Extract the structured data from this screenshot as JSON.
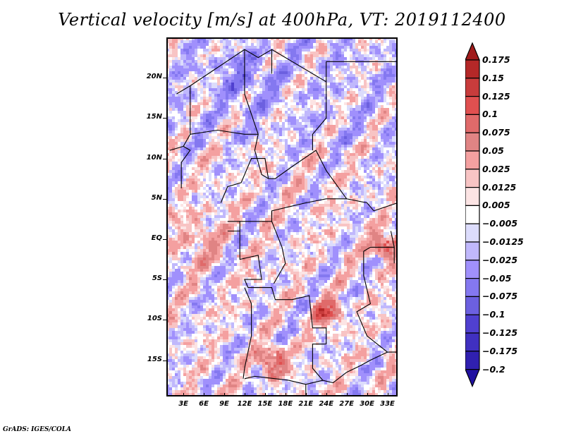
{
  "title": "Vertical velocity [m/s] at 400hPa, VT: 2019112400",
  "credit": "GrADS: IGES/COLA",
  "chart_data": {
    "type": "heatmap",
    "title": "Vertical velocity [m/s] at 400hPa, VT: 2019112400",
    "variable": "Vertical velocity",
    "units": "m/s",
    "level": "400hPa",
    "valid_time": "2019112400",
    "xlabel": "",
    "ylabel": "",
    "x_ticks": [
      "3E",
      "6E",
      "9E",
      "12E",
      "15E",
      "18E",
      "21E",
      "24E",
      "27E",
      "30E",
      "33E"
    ],
    "x_tick_values": [
      3,
      6,
      9,
      12,
      15,
      18,
      21,
      24,
      27,
      30,
      33
    ],
    "y_ticks": [
      "20N",
      "15N",
      "10N",
      "5N",
      "EQ",
      "5S",
      "10S",
      "15S"
    ],
    "y_tick_values": [
      20,
      15,
      10,
      5,
      0,
      -5,
      -10,
      -15
    ],
    "xlim": [
      0.5,
      34.5
    ],
    "ylim": [
      -19.5,
      25
    ],
    "colorbar": {
      "orientation": "vertical",
      "placement": "right",
      "extend": "both",
      "levels": [
        "0.175",
        "0.15",
        "0.125",
        "0.1",
        "0.075",
        "0.05",
        "0.025",
        "0.0125",
        "0.005",
        "-0.005",
        "-0.0125",
        "-0.025",
        "-0.05",
        "-0.075",
        "-0.1",
        "-0.125",
        "-0.175",
        "-0.2"
      ],
      "colors": [
        "#a01c1c",
        "#b42828",
        "#c83c3c",
        "#e05050",
        "#e06a6a",
        "#e08484",
        "#f4a0a0",
        "#f8c4c4",
        "#fce4e4",
        "#ffffff",
        "#dcdcfc",
        "#c0b8fc",
        "#a090fc",
        "#8478f0",
        "#6c60e0",
        "#5040d0",
        "#4030c0",
        "#3020b0",
        "#2010a0"
      ]
    },
    "features": [
      {
        "name": "positive anomaly",
        "region": "Lake Victoria / East Africa",
        "approx_lon": 32.5,
        "approx_lat": -0.5,
        "value_class": "0.15+"
      },
      {
        "name": "positive band",
        "region": "Southern DRC / Zambia",
        "approx_lon": 24,
        "approx_lat": -9,
        "value_class": "0.1-0.15"
      },
      {
        "name": "positive streak",
        "region": "Southern Angola",
        "approx_lon": 16,
        "approx_lat": -15,
        "value_class": "0.15+"
      },
      {
        "name": "negative area",
        "region": "Sahara / Niger-Chad",
        "approx_lon": 12,
        "approx_lat": 20,
        "value_class": "-0.05 to -0.1"
      },
      {
        "name": "weak positive",
        "region": "Gulf of Guinea / Atlantic",
        "approx_lon": 5,
        "approx_lat": 0,
        "value_class": "0.0125-0.05"
      }
    ]
  }
}
